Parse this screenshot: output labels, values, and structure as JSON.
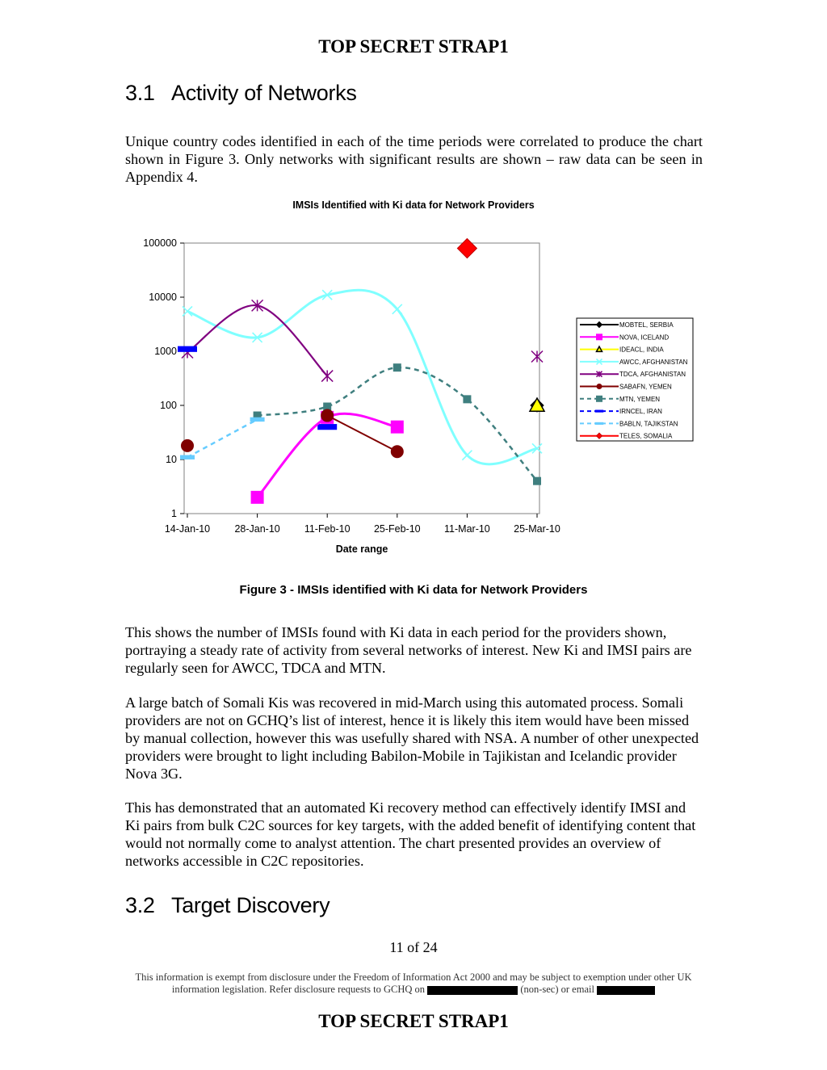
{
  "classification": "TOP SECRET STRAP1",
  "section_1": {
    "number": "3.1",
    "title": "Activity of Networks"
  },
  "intro_paragraph": "Unique country codes identified in each of the time periods were correlated to produce the chart shown in Figure 3. Only networks with significant results are shown – raw data can be seen in Appendix 4.",
  "chart_data": {
    "type": "line",
    "title": "IMSIs Identified with Ki data for Network Providers",
    "xlabel": "Date range",
    "ylabel": "",
    "y_scale": "log",
    "ylim": [
      1,
      100000
    ],
    "y_ticks": [
      "1",
      "10",
      "100",
      "1000",
      "10000",
      "100000"
    ],
    "categories": [
      "14-Jan-10",
      "28-Jan-10",
      "11-Feb-10",
      "25-Feb-10",
      "11-Mar-10",
      "25-Mar-10"
    ],
    "legend_position": "right",
    "grid": false,
    "series": [
      {
        "name": "MOBTEL, SERBIA",
        "color": "#000000",
        "marker": "diamond",
        "line": "solid",
        "values": [
          null,
          null,
          null,
          null,
          null,
          100
        ]
      },
      {
        "name": "NOVA, ICELAND",
        "color": "#ff00ff",
        "marker": "square",
        "line": "solid",
        "values": [
          null,
          2,
          60,
          40,
          null,
          null
        ]
      },
      {
        "name": "IDEACL, INDIA",
        "color": "#ffff00",
        "marker": "triangle",
        "line": "solid",
        "values": [
          null,
          null,
          null,
          null,
          null,
          100
        ]
      },
      {
        "name": "AWCC, AFGHANISTAN",
        "color": "#80ffff",
        "marker": "x",
        "line": "solid",
        "values": [
          5500,
          1800,
          11000,
          6000,
          12,
          16
        ]
      },
      {
        "name": "TDCA, AFGHANISTAN",
        "color": "#800080",
        "marker": "star",
        "line": "solid",
        "values": [
          950,
          7000,
          350,
          null,
          null,
          800
        ]
      },
      {
        "name": "SABAFN, YEMEN",
        "color": "#800000",
        "marker": "circle",
        "line": "solid",
        "values": [
          18,
          null,
          65,
          14,
          null,
          null
        ]
      },
      {
        "name": "MTN, YEMEN",
        "color": "#3f7f7f",
        "marker": "square",
        "line": "dashed",
        "values": [
          null,
          65,
          95,
          500,
          130,
          4
        ]
      },
      {
        "name": "IRNCEL, IRAN",
        "color": "#0000ff",
        "marker": "dash",
        "line": "dashed",
        "values": [
          1100,
          null,
          40,
          null,
          null,
          null
        ]
      },
      {
        "name": "BABLN, TAJIKSTAN",
        "color": "#66ccff",
        "marker": "dash",
        "line": "dashed",
        "values": [
          11,
          55,
          null,
          null,
          null,
          null
        ]
      },
      {
        "name": "TELES, SOMALIA",
        "color": "#ff0000",
        "marker": "diamond",
        "line": "solid",
        "values": [
          null,
          null,
          null,
          null,
          80000,
          null
        ]
      }
    ]
  },
  "figure_caption": "Figure 3 - IMSIs identified with Ki data for Network Providers",
  "paragraph_2": "This shows the number of IMSIs found with Ki data in each period for the providers shown, portraying a steady rate of activity from several networks of interest. New Ki and IMSI pairs are regularly seen for AWCC, TDCA and MTN.",
  "paragraph_3": "A large batch of Somali Kis was recovered in mid-March using this automated process. Somali providers are not on GCHQ’s list of interest, hence it is likely this item would have been missed by manual collection, however this was usefully shared with NSA. A number of other unexpected providers were brought to light including Babilon-Mobile in Tajikistan and Icelandic provider Nova 3G.",
  "paragraph_4": "This has demonstrated that an automated Ki recovery method can effectively identify IMSI and Ki pairs from bulk C2C sources for key targets, with the added benefit of identifying content that would not normally come to analyst attention. The chart presented provides an overview of networks accessible in C2C repositories.",
  "section_2": {
    "number": "3.2",
    "title": "Target Discovery"
  },
  "page_number": "11 of 24",
  "footer": {
    "line1": "This information is exempt from disclosure under the Freedom of Information Act 2000 and may be subject to exemption under other UK",
    "line2_start": "information legislation. Refer disclosure requests to GCHQ on",
    "line2_mid": "(non-sec) or email"
  }
}
